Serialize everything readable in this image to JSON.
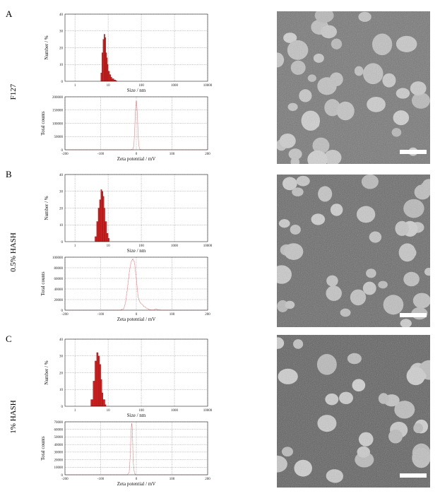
{
  "panels": [
    {
      "letter": "A",
      "sample": "F127",
      "size_chart": {
        "type": "bar",
        "ylabel": "Number / %",
        "xlabel": "Size / nm",
        "yticks": [
          "0",
          "10",
          "20",
          "30",
          "40"
        ],
        "xticks": [
          "1",
          "10",
          "100",
          "1000",
          "10000"
        ]
      },
      "zeta_chart": {
        "type": "line",
        "ylabel": "Total counts",
        "xlabel": "Zeta potential / mV",
        "yticks": [
          "0",
          "50000",
          "100000",
          "150000",
          "200000"
        ],
        "xticks": [
          "-200",
          "-100",
          "0",
          "100",
          "200"
        ]
      }
    },
    {
      "letter": "B",
      "sample": "0.5% HASH",
      "size_chart": {
        "type": "bar",
        "ylabel": "Number / %",
        "xlabel": "Size / nm",
        "yticks": [
          "0",
          "10",
          "20",
          "30",
          "40"
        ],
        "xticks": [
          "1",
          "10",
          "100",
          "1000",
          "10000"
        ]
      },
      "zeta_chart": {
        "type": "line",
        "ylabel": "Total counts",
        "xlabel": "Zeta potential / mV",
        "yticks": [
          "0",
          "20000",
          "40000",
          "60000",
          "80000",
          "100000"
        ],
        "xticks": [
          "-200",
          "-100",
          "0",
          "100",
          "200"
        ]
      }
    },
    {
      "letter": "C",
      "sample": "1% HASH",
      "size_chart": {
        "type": "bar",
        "ylabel": "Number / %",
        "xlabel": "Size / nm",
        "yticks": [
          "0",
          "10",
          "20",
          "30",
          "40"
        ],
        "xticks": [
          "1",
          "10",
          "100",
          "1000",
          "10000"
        ]
      },
      "zeta_chart": {
        "type": "line",
        "ylabel": "Total counts",
        "xlabel": "Zeta potential / mV",
        "yticks": [
          "0",
          "10000",
          "20000",
          "30000",
          "40000",
          "50000",
          "60000",
          "70000"
        ],
        "xticks": [
          "-200",
          "-100",
          "0",
          "100",
          "200"
        ]
      }
    }
  ],
  "chart_data": [
    {
      "type": "bar",
      "title": "",
      "xlabel": "Size / nm",
      "ylabel": "Number / %",
      "x_scale": "log",
      "xlim": [
        0.5,
        10000
      ],
      "ylim": [
        0,
        40
      ],
      "x": [
        6.0,
        6.5,
        7.0,
        7.5,
        8.0,
        8.5,
        9.0,
        9.5,
        10,
        11,
        12,
        13,
        15,
        17
      ],
      "values": [
        5,
        17,
        25,
        28,
        26,
        17,
        14,
        10,
        6,
        4,
        2.5,
        1.5,
        0.8,
        0.3
      ]
    },
    {
      "type": "line",
      "title": "",
      "xlabel": "Zeta potential / mV",
      "ylabel": "Total counts",
      "xlim": [
        -200,
        200
      ],
      "ylim": [
        0,
        200000
      ],
      "x": [
        -200,
        -15,
        -10,
        -7,
        -5,
        -3,
        -1,
        0,
        1,
        3,
        5,
        7,
        10,
        15,
        200
      ],
      "values": [
        0,
        0,
        2000,
        15000,
        60000,
        130000,
        175000,
        185000,
        180000,
        130000,
        60000,
        15000,
        2000,
        0,
        0
      ]
    },
    {
      "type": "bar",
      "title": "",
      "xlabel": "Size / nm",
      "ylabel": "Number / %",
      "x_scale": "log",
      "xlim": [
        0.5,
        10000
      ],
      "ylim": [
        0,
        40
      ],
      "x": [
        4.0,
        4.5,
        5.0,
        5.5,
        6.0,
        6.5,
        7.0,
        7.5,
        8.0,
        9.0,
        10
      ],
      "values": [
        3,
        12,
        20,
        25,
        31,
        30,
        27,
        20,
        12,
        5,
        2
      ]
    },
    {
      "type": "line",
      "title": "",
      "xlabel": "Zeta potential / mV",
      "ylabel": "Total counts",
      "xlim": [
        -200,
        200
      ],
      "ylim": [
        0,
        100000
      ],
      "x": [
        -200,
        -45,
        -35,
        -30,
        -25,
        -20,
        -15,
        -10,
        -5,
        0,
        5,
        10,
        15,
        20,
        30,
        40,
        50,
        55,
        60,
        70,
        200
      ],
      "values": [
        0,
        0,
        3000,
        15000,
        40000,
        70000,
        90000,
        97000,
        90000,
        60000,
        25000,
        15000,
        12000,
        8000,
        3000,
        500,
        500,
        2500,
        1000,
        0,
        0
      ]
    },
    {
      "type": "bar",
      "title": "",
      "xlabel": "Size / nm",
      "ylabel": "Number / %",
      "x_scale": "log",
      "xlim": [
        0.5,
        10000
      ],
      "ylim": [
        0,
        40
      ],
      "x": [
        3.0,
        3.5,
        4.0,
        4.5,
        5.0,
        5.5,
        6.0,
        6.5,
        7.0,
        8.0
      ],
      "values": [
        4,
        15,
        27,
        32,
        30,
        25,
        16,
        8,
        4,
        1
      ]
    },
    {
      "type": "line",
      "title": "",
      "xlabel": "Zeta potential / mV",
      "ylabel": "Total counts",
      "xlim": [
        -200,
        200
      ],
      "ylim": [
        0,
        70000
      ],
      "x": [
        -200,
        -25,
        -20,
        -17,
        -15,
        -13,
        -11,
        -10,
        -9,
        -7,
        -5,
        -2,
        200
      ],
      "values": [
        0,
        0,
        3000,
        25000,
        55000,
        68000,
        60000,
        40000,
        20000,
        8000,
        2000,
        0,
        0
      ]
    }
  ],
  "micrographs": [
    {
      "name": "micrograph-f127"
    },
    {
      "name": "micrograph-0.5-hash"
    },
    {
      "name": "micrograph-1-hash"
    }
  ],
  "colors": {
    "bar": "#d21f1f",
    "line": "#e03030",
    "tem_background": "#6f6f6f",
    "tem_particle": "#c6c6c6"
  }
}
